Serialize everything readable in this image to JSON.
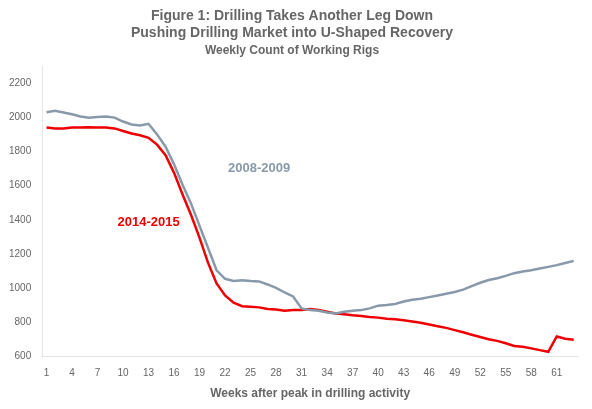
{
  "chart_data": {
    "type": "line",
    "title": "Figure 1: Drilling Takes Another Leg Down\nPushing Drilling Market into U-Shaped Recovery",
    "subtitle": "Weekly Count of Working Rigs",
    "xlabel": "Weeks after peak in drilling activity",
    "x": [
      1,
      2,
      3,
      4,
      5,
      6,
      7,
      8,
      9,
      10,
      11,
      12,
      13,
      14,
      15,
      16,
      17,
      18,
      19,
      20,
      21,
      22,
      23,
      24,
      25,
      26,
      27,
      28,
      29,
      30,
      31,
      32,
      33,
      34,
      35,
      36,
      37,
      38,
      39,
      40,
      41,
      42,
      43,
      44,
      45,
      46,
      47,
      48,
      49,
      50,
      51,
      52,
      53,
      54,
      55,
      56,
      57,
      58,
      59,
      60,
      61,
      62,
      63
    ],
    "series": [
      {
        "color": "#8899aa",
        "values": [
          2030,
          2038,
          2028,
          2018,
          2005,
          1998,
          2002,
          2005,
          1998,
          1975,
          1958,
          1952,
          1962,
          1900,
          1828,
          1725,
          1605,
          1495,
          1365,
          1235,
          1105,
          1055,
          1042,
          1047,
          1042,
          1040,
          1022,
          1002,
          975,
          952,
          882,
          872,
          868,
          858,
          852,
          862,
          868,
          872,
          882,
          898,
          902,
          908,
          922,
          932,
          938,
          948,
          958,
          968,
          978,
          992,
          1012,
          1032,
          1048,
          1058,
          1072,
          1088,
          1098,
          1105,
          1115,
          1125,
          1135,
          1148,
          1160
        ]
      },
      {
        "color": "#ee0000",
        "values": [
          1940,
          1935,
          1935,
          1940,
          1940,
          1942,
          1940,
          1940,
          1935,
          1920,
          1905,
          1895,
          1880,
          1840,
          1778,
          1675,
          1548,
          1428,
          1295,
          1148,
          1028,
          958,
          915,
          895,
          892,
          888,
          878,
          875,
          868,
          872,
          872,
          878,
          872,
          862,
          852,
          848,
          842,
          838,
          832,
          828,
          822,
          818,
          812,
          805,
          798,
          788,
          778,
          768,
          755,
          742,
          728,
          715,
          702,
          692,
          678,
          662,
          658,
          648,
          638,
          628,
          718,
          705,
          698
        ]
      }
    ],
    "annotations": [
      {
        "text": "2008-2009",
        "x": 26,
        "y": 1700,
        "color": "#8899aa"
      },
      {
        "text": "2014-2015",
        "x": 13,
        "y": 1385,
        "color": "#ee0000"
      }
    ],
    "xlim": [
      0.5,
      63.5
    ],
    "xticks": [
      1,
      4,
      7,
      10,
      13,
      16,
      19,
      22,
      25,
      28,
      31,
      34,
      37,
      40,
      43,
      46,
      49,
      52,
      55,
      58,
      61
    ],
    "ylim": [
      600,
      2300
    ],
    "yticks": [
      600,
      800,
      1000,
      1200,
      1400,
      1600,
      1800,
      2000,
      2200
    ],
    "grid": false
  }
}
